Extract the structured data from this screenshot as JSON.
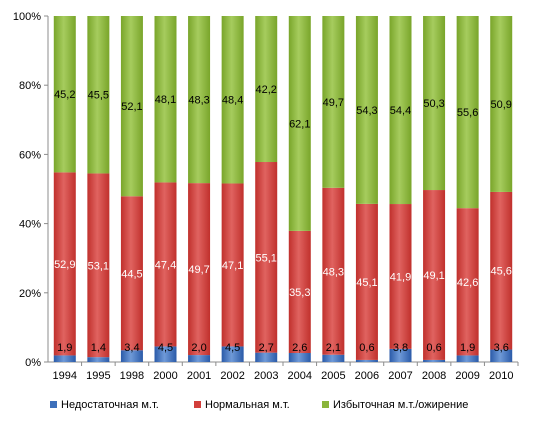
{
  "chart_data": {
    "type": "bar",
    "stacked": true,
    "percent": true,
    "categories": [
      "1994",
      "1995",
      "1998",
      "2000",
      "2001",
      "2002",
      "2003",
      "2004",
      "2005",
      "2006",
      "2007",
      "2008",
      "2009",
      "2010"
    ],
    "series": [
      {
        "name": "Недостаточная м.т.",
        "color": "#3d6fba",
        "values": [
          1.9,
          1.4,
          3.4,
          4.5,
          2.0,
          4.5,
          2.7,
          2.6,
          2.1,
          0.6,
          3.8,
          0.6,
          1.9,
          3.6
        ],
        "labels": [
          "1,9",
          "1,4",
          "3,4",
          "4,5",
          "2,0",
          "4,5",
          "2,7",
          "2,6",
          "2,1",
          "0,6",
          "3,8",
          "0,6",
          "1,9",
          "3,6"
        ]
      },
      {
        "name": "Нормальная м.т.",
        "color": "#d23f3b",
        "values": [
          52.9,
          53.1,
          44.5,
          47.4,
          49.7,
          47.1,
          55.1,
          35.3,
          48.3,
          45.1,
          41.9,
          49.1,
          42.6,
          45.6
        ],
        "labels": [
          "52,9",
          "53,1",
          "44,5",
          "47,4",
          "49,7",
          "47,1",
          "55,1",
          "35,3",
          "48,3",
          "45,1",
          "41,9",
          "49,1",
          "42,6",
          "45,6"
        ]
      },
      {
        "name": "Избыточная м.т./ожирение",
        "color": "#8ab53a",
        "values": [
          45.2,
          45.5,
          52.1,
          48.1,
          48.3,
          48.4,
          42.2,
          62.1,
          49.7,
          54.3,
          54.4,
          50.3,
          55.6,
          50.9
        ],
        "labels": [
          "45,2",
          "45,5",
          "52,1",
          "48,1",
          "48,3",
          "48,4",
          "42,2",
          "62,1",
          "49,7",
          "54,3",
          "54,4",
          "50,3",
          "55,6",
          "50,9"
        ]
      }
    ],
    "yticks": [
      "0%",
      "20%",
      "40%",
      "60%",
      "80%",
      "100%"
    ],
    "ylim": [
      0,
      100
    ],
    "grid": false,
    "legend": "bottom"
  }
}
